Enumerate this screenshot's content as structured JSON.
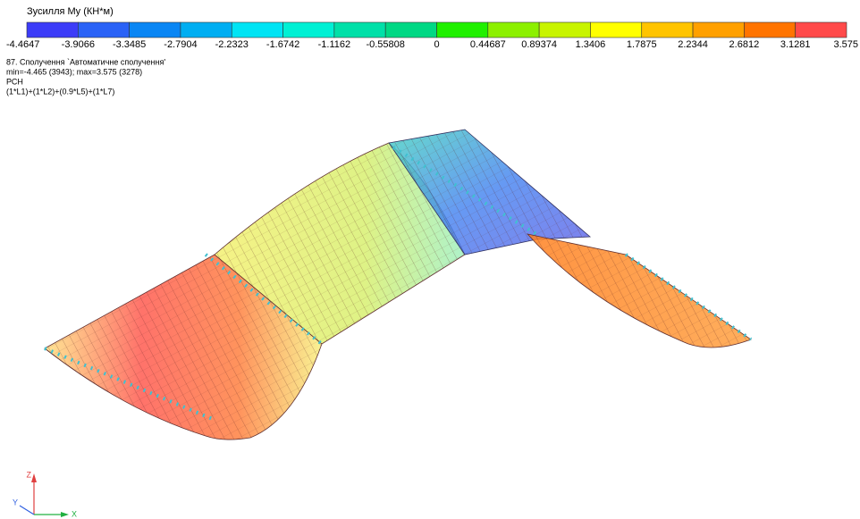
{
  "legend": {
    "title": "Зусилля My (КН*м)",
    "labels": [
      "-4.4647",
      "-3.9066",
      "-3.3485",
      "-2.7904",
      "-2.2323",
      "-1.6742",
      "-1.1162",
      "-0.55808",
      "0",
      "0.44687",
      "0.89374",
      "1.3406",
      "1.7875",
      "2.2344",
      "2.6812",
      "3.1281",
      "3.575"
    ],
    "colors": [
      "#3c3cf8",
      "#2a62f6",
      "#0a86f4",
      "#00aef2",
      "#00e4f4",
      "#00f0d4",
      "#00e0a8",
      "#00d884",
      "#20f000",
      "#8cf000",
      "#c8f400",
      "#ffff00",
      "#ffc400",
      "#ffa000",
      "#ff7400",
      "#ff4a4a"
    ]
  },
  "info": {
    "lines": [
      "87. Сполучення `Автоматичне сполучення'",
      "min=-4.465 (3943); max=3.575 (3278)",
      "РСН",
      "(1*L1)+(1*L2)+(0.9*L5)+(1*L7)"
    ]
  },
  "axes": {
    "z": "Z",
    "y": "Y",
    "x": "X"
  }
}
